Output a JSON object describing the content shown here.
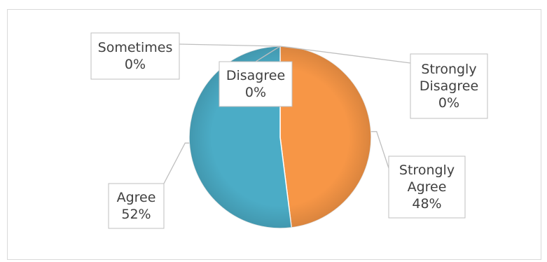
{
  "chart_data": {
    "type": "pie",
    "title": "",
    "slices": [
      {
        "label": "Strongly Agree",
        "value": 48,
        "display": "48%",
        "color": "#F79646"
      },
      {
        "label": "Agree",
        "value": 52,
        "display": "52%",
        "color": "#4BACC6"
      },
      {
        "label": "Disagree",
        "value": 0,
        "display": "0%",
        "color": "#8064A2"
      },
      {
        "label": "Sometimes",
        "value": 0,
        "display": "0%",
        "color": "#9BBB59"
      },
      {
        "label": "Strongly Disagree",
        "value": 0,
        "display": "0%",
        "color": "#C0504D"
      }
    ],
    "legend": "none",
    "data_labels": "callouts"
  }
}
